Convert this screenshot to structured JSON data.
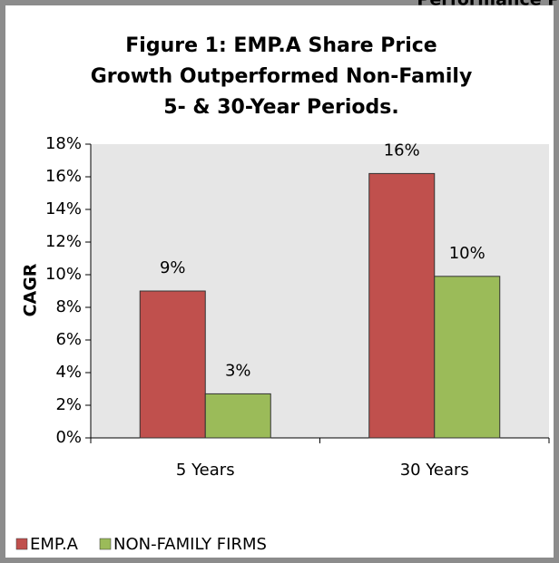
{
  "chart_data": {
    "type": "bar",
    "title": "Figure 1: EMP.A Share Price Growth Outperformed Non-Family 5- & 30-Year Periods.",
    "x_label": "Performance Period",
    "y_label": "CAGR",
    "categories": [
      "5 Years",
      "30 Years"
    ],
    "series": [
      {
        "name": "EMP.A",
        "color": "#c0504d",
        "values": [
          9.0,
          16.2
        ],
        "value_labels": [
          "9%",
          "16%"
        ]
      },
      {
        "name": "NON-FAMILY FIRMS",
        "color": "#9bbb59",
        "values": [
          2.7,
          9.9
        ],
        "value_labels": [
          "3%",
          "10%"
        ]
      }
    ],
    "ylim": [
      0,
      18
    ],
    "yticks": [
      {
        "value": 0,
        "label": "0%"
      },
      {
        "value": 2,
        "label": "2%"
      },
      {
        "value": 4,
        "label": "4%"
      },
      {
        "value": 6,
        "label": "6%"
      },
      {
        "value": 8,
        "label": "8%"
      },
      {
        "value": 10,
        "label": "10%"
      },
      {
        "value": 12,
        "label": "12%"
      },
      {
        "value": 14,
        "label": "14%"
      },
      {
        "value": 16,
        "label": "16%"
      },
      {
        "value": 18,
        "label": "18%"
      }
    ],
    "legend": "bottom-left"
  }
}
